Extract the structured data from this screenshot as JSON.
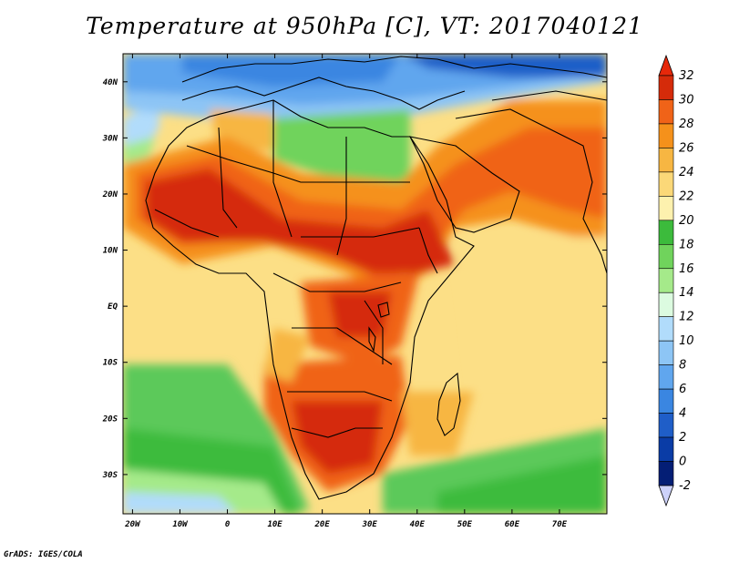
{
  "title": "Temperature at 950hPa [C], VT: 2017040121",
  "footer": "GrADS: IGES/COLA",
  "map": {
    "lon_labels": [
      "20W",
      "10W",
      "0",
      "10E",
      "20E",
      "30E",
      "40E",
      "50E",
      "60E",
      "70E"
    ],
    "lat_labels": [
      "40N",
      "30N",
      "20N",
      "10N",
      "EQ",
      "10S",
      "20S",
      "30S"
    ],
    "lon_range": [
      -22,
      80
    ],
    "lat_range": [
      -37,
      45
    ]
  },
  "colorbar": {
    "labels": [
      "32",
      "30",
      "28",
      "26",
      "24",
      "22",
      "20",
      "18",
      "16",
      "14",
      "12",
      "10",
      "8",
      "6",
      "4",
      "2",
      "0",
      "-2"
    ],
    "colors": [
      "#d52b0a",
      "#f06318",
      "#f5911b",
      "#f7b642",
      "#fbd878",
      "#fdf1ae",
      "#3cbb3c",
      "#70d35c",
      "#a5ea8a",
      "#dcfbe0",
      "#b1dcfb",
      "#8dc5f5",
      "#60a6ee",
      "#3a86e1",
      "#1f5ec8",
      "#0a3ca6",
      "#041e75"
    ],
    "top_arrow_color": "#e6280a",
    "bottom_arrow_color": "#cdd2fa"
  }
}
